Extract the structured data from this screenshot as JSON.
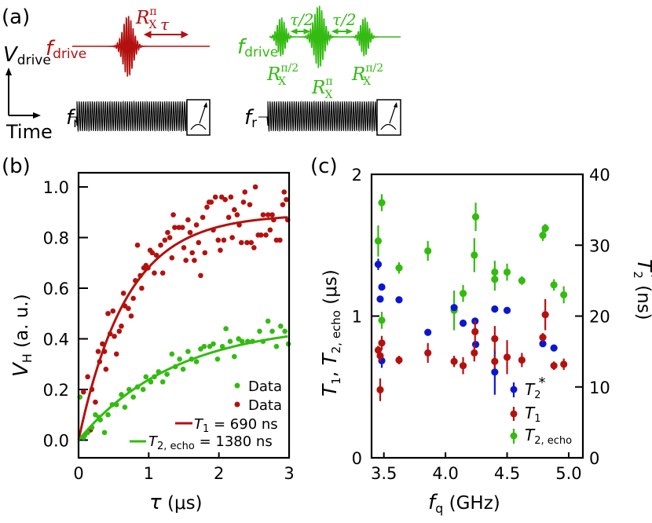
{
  "colors": {
    "t1": "#b3110f",
    "echo": "#33bb11",
    "t2star": "#0b17cf",
    "axis": "#000000"
  },
  "panel_a": {
    "label": "(a)",
    "vdrive": {
      "main": "V",
      "sub": "drive"
    },
    "time": "Time",
    "f_drive": {
      "main": "f",
      "sub": "drive"
    },
    "f_r": {
      "main": "f",
      "sub": "r"
    },
    "t1_sequence": {
      "pulse": {
        "main": "R",
        "sub": "X",
        "sup": "π"
      },
      "delay": "τ"
    },
    "echo_sequence": {
      "pulse_half": {
        "main": "R",
        "sub": "X",
        "sup": "π/2"
      },
      "pulse_pi": {
        "main": "R",
        "sub": "X",
        "sup": "π"
      },
      "half_delay": "τ/2"
    }
  },
  "chart_data": [
    {
      "panel_label": "(b)",
      "type": "scatter",
      "xlabel": {
        "main": "τ",
        "unit": " (μs)"
      },
      "ylabel": {
        "main": "V",
        "sub": "H",
        "unit": " (a. u.)"
      },
      "xlim": [
        0,
        3
      ],
      "ylim": [
        -0.07,
        1.056
      ],
      "xticks": [
        "0",
        "1",
        "2",
        "3"
      ],
      "yticks": [
        "0.0",
        "0.2",
        "0.4",
        "0.6",
        "0.8",
        "1.0"
      ],
      "legend_position": "bottom-right",
      "legend": {
        "echo_data": "Data",
        "t1_data": "Data",
        "t1_fit": {
          "main": "T",
          "sub": "1",
          "rest": " = 690 ns"
        },
        "echo_fit": {
          "main": "T",
          "sub": "2, echo",
          "rest": " = 1380 ns"
        }
      },
      "fits": [
        {
          "series": "t1",
          "model": "A(1-exp(-t/T))",
          "A": 0.892,
          "T_us": 0.69
        },
        {
          "series": "echo",
          "model": "A(1-exp(-t/T))",
          "A": 0.463,
          "T_us": 1.38
        }
      ],
      "series": [
        {
          "key": "t1",
          "points": [
            [
              0.07,
              0.01
            ],
            [
              0.17,
              0.04
            ],
            [
              0.07,
              0.19
            ],
            [
              0.13,
              0.25
            ],
            [
              0.19,
              0.2
            ],
            [
              0.24,
              0.15
            ],
            [
              0.28,
              0.35
            ],
            [
              0.3,
              0.31
            ],
            [
              0.34,
              0.38
            ],
            [
              0.37,
              0.35
            ],
            [
              0.39,
              0.28
            ],
            [
              0.42,
              0.5
            ],
            [
              0.45,
              0.42
            ],
            [
              0.49,
              0.51
            ],
            [
              0.51,
              0.41
            ],
            [
              0.54,
              0.34
            ],
            [
              0.58,
              0.43
            ],
            [
              0.61,
              0.45
            ],
            [
              0.64,
              0.58
            ],
            [
              0.66,
              0.53
            ],
            [
              0.71,
              0.52
            ],
            [
              0.75,
              0.49
            ],
            [
              0.78,
              0.56
            ],
            [
              0.81,
              0.63
            ],
            [
              0.84,
              0.77
            ],
            [
              0.88,
              0.65
            ],
            [
              0.9,
              0.6
            ],
            [
              0.93,
              0.68
            ],
            [
              0.96,
              0.69
            ],
            [
              0.99,
              0.68
            ],
            [
              1.02,
              0.75
            ],
            [
              1.05,
              0.74
            ],
            [
              1.08,
              0.66
            ],
            [
              1.11,
              0.73
            ],
            [
              1.17,
              0.77
            ],
            [
              1.2,
              0.66
            ],
            [
              1.23,
              0.79
            ],
            [
              1.27,
              0.82
            ],
            [
              1.3,
              0.8
            ],
            [
              1.33,
              0.72
            ],
            [
              1.35,
              0.89
            ],
            [
              1.37,
              0.84
            ],
            [
              1.43,
              0.84
            ],
            [
              1.48,
              0.84
            ],
            [
              1.5,
              0.76
            ],
            [
              1.53,
              0.71
            ],
            [
              1.56,
              0.87
            ],
            [
              1.59,
              0.82
            ],
            [
              1.62,
              0.74
            ],
            [
              1.65,
              0.71
            ],
            [
              1.68,
              0.85
            ],
            [
              1.71,
              0.78
            ],
            [
              1.74,
              0.65
            ],
            [
              1.77,
              0.88
            ],
            [
              1.8,
              0.74
            ],
            [
              1.83,
              0.92
            ],
            [
              1.86,
              0.94
            ],
            [
              1.89,
              0.94
            ],
            [
              1.92,
              0.83
            ],
            [
              1.95,
              0.96
            ],
            [
              1.99,
              0.79
            ],
            [
              2.02,
              0.75
            ],
            [
              2.04,
              0.96
            ],
            [
              2.07,
              0.79
            ],
            [
              2.09,
              0.95
            ],
            [
              2.14,
              0.88
            ],
            [
              2.17,
              0.96
            ],
            [
              2.19,
              0.8
            ],
            [
              2.22,
              0.91
            ],
            [
              2.26,
              0.89
            ],
            [
              2.29,
              0.85
            ],
            [
              2.32,
              0.78
            ],
            [
              2.35,
              0.94
            ],
            [
              2.37,
              0.98
            ],
            [
              2.4,
              0.78
            ],
            [
              2.44,
              0.93
            ],
            [
              2.46,
              0.78
            ],
            [
              2.5,
              0.76
            ],
            [
              2.52,
              1.0
            ],
            [
              2.56,
              0.81
            ],
            [
              2.6,
              0.81
            ],
            [
              2.63,
              0.89
            ],
            [
              2.67,
              0.81
            ],
            [
              2.7,
              0.89
            ],
            [
              2.73,
              0.83
            ],
            [
              2.76,
              0.89
            ],
            [
              2.78,
              0.87
            ],
            [
              2.82,
              0.79
            ],
            [
              2.87,
              0.79
            ],
            [
              2.91,
              0.93
            ],
            [
              2.93,
              0.98
            ],
            [
              2.96,
              0.95
            ],
            [
              2.98,
              0.87
            ]
          ]
        },
        {
          "key": "echo",
          "points": [
            [
              0.02,
              0.17
            ],
            [
              0.07,
              0.01
            ],
            [
              0.09,
              0.02
            ],
            [
              0.13,
              0.03
            ],
            [
              0.19,
              0.05
            ],
            [
              0.24,
              0.1
            ],
            [
              0.29,
              0.09
            ],
            [
              0.31,
              0.08
            ],
            [
              0.37,
              0.03
            ],
            [
              0.42,
              0.1
            ],
            [
              0.48,
              0.14
            ],
            [
              0.54,
              0.14
            ],
            [
              0.61,
              0.18
            ],
            [
              0.66,
              0.13
            ],
            [
              0.72,
              0.2
            ],
            [
              0.78,
              0.17
            ],
            [
              0.84,
              0.21
            ],
            [
              0.92,
              0.2
            ],
            [
              0.96,
              0.25
            ],
            [
              1.03,
              0.23
            ],
            [
              1.08,
              0.25
            ],
            [
              1.14,
              0.27
            ],
            [
              1.2,
              0.23
            ],
            [
              1.26,
              0.26
            ],
            [
              1.33,
              0.34
            ],
            [
              1.38,
              0.29
            ],
            [
              1.44,
              0.32
            ],
            [
              1.49,
              0.28
            ],
            [
              1.56,
              0.35
            ],
            [
              1.61,
              0.32
            ],
            [
              1.68,
              0.31
            ],
            [
              1.74,
              0.36
            ],
            [
              1.79,
              0.37
            ],
            [
              1.87,
              0.37
            ],
            [
              1.92,
              0.38
            ],
            [
              1.98,
              0.32
            ],
            [
              2.05,
              0.37
            ],
            [
              2.1,
              0.44
            ],
            [
              2.16,
              0.39
            ],
            [
              2.22,
              0.33
            ],
            [
              2.28,
              0.4
            ],
            [
              2.33,
              0.39
            ],
            [
              2.41,
              0.39
            ],
            [
              2.48,
              0.39
            ],
            [
              2.58,
              0.43
            ],
            [
              2.63,
              0.39
            ],
            [
              2.7,
              0.47
            ],
            [
              2.76,
              0.43
            ],
            [
              2.82,
              0.37
            ],
            [
              2.88,
              0.45
            ],
            [
              2.94,
              0.43
            ],
            [
              2.99,
              0.38
            ]
          ]
        }
      ]
    },
    {
      "panel_label": "(c)",
      "type": "scatter",
      "xlabel": {
        "main": "f",
        "sub": "q",
        "unit": " (GHz)"
      },
      "ylabel_left": {
        "t1": "T",
        "t1_sub": "1",
        "sep": ", ",
        "t2": "T",
        "t2_sub": "2, echo",
        "unit": " (μs)"
      },
      "ylabel_right": {
        "main": "T",
        "sub": "2",
        "sup": "*",
        "unit": " (ns)"
      },
      "xlim": [
        3.4,
        5.115
      ],
      "ylim_left": [
        0,
        2
      ],
      "ylim_right": [
        0,
        40
      ],
      "xticks": [
        "3.5",
        "4.0",
        "4.5",
        "5.0"
      ],
      "yticks_left": [
        "0",
        "1",
        "2"
      ],
      "yticks_right": [
        "0",
        "10",
        "20",
        "30",
        "40"
      ],
      "legend_position": "bottom-right",
      "legend": {
        "t2star": {
          "main": "T",
          "sub": "2",
          "sup": "*"
        },
        "t1": {
          "main": "T",
          "sub": "1"
        },
        "echo": {
          "main": "T",
          "sub": "2, echo"
        }
      },
      "series": [
        {
          "key": "echo",
          "axis": "left",
          "unit": "μs",
          "points": [
            [
              3.483,
              1.8,
              0.06
            ],
            [
              3.454,
              1.53,
              0.11
            ],
            [
              3.483,
              0.97,
              0.06
            ],
            [
              3.623,
              1.34,
              0.04
            ],
            [
              3.857,
              1.46,
              0.07
            ],
            [
              4.07,
              1.04,
              0.14
            ],
            [
              4.143,
              1.16,
              0.06
            ],
            [
              4.245,
              1.7,
              0.1
            ],
            [
              4.234,
              1.43,
              0.12
            ],
            [
              4.4,
              1.31,
              0.08
            ],
            [
              4.4,
              1.26,
              0.08
            ],
            [
              4.5,
              1.31,
              0.06
            ],
            [
              4.62,
              1.25,
              0.03
            ],
            [
              4.79,
              1.57,
              0.04
            ],
            [
              4.81,
              1.62,
              0.03
            ],
            [
              4.88,
              1.22,
              0.04
            ],
            [
              4.96,
              1.15,
              0.06
            ]
          ]
        },
        {
          "key": "t2star",
          "axis": "right",
          "unit": "ns",
          "points": [
            [
              3.454,
              27.3,
              0.8
            ],
            [
              3.483,
              24.1,
              0.3
            ],
            [
              3.47,
              22.4,
              0.3
            ],
            [
              3.483,
              13.7,
              1.0
            ],
            [
              3.623,
              22.3,
              0.3
            ],
            [
              3.857,
              17.7,
              0.3
            ],
            [
              4.07,
              21.2,
              0.4
            ],
            [
              4.143,
              19.0,
              0.3
            ],
            [
              4.24,
              19.3,
              0.3
            ],
            [
              4.245,
              16.0,
              0.4
            ],
            [
              4.4,
              21.0,
              0.3
            ],
            [
              4.5,
              20.8,
              0.3
            ],
            [
              4.4,
              12.1,
              3.2
            ],
            [
              4.79,
              16.1,
              0.3
            ],
            [
              4.88,
              15.5,
              0.3
            ]
          ]
        },
        {
          "key": "t1",
          "axis": "left",
          "unit": "μs",
          "points": [
            [
              3.454,
              0.76,
              0.03
            ],
            [
              3.483,
              0.81,
              0.05
            ],
            [
              3.47,
              0.72,
              0.04
            ],
            [
              3.47,
              0.48,
              0.08
            ],
            [
              3.623,
              0.69,
              0.03
            ],
            [
              3.857,
              0.74,
              0.07
            ],
            [
              4.07,
              0.68,
              0.04
            ],
            [
              4.143,
              0.65,
              0.06
            ],
            [
              4.24,
              0.89,
              0.08
            ],
            [
              4.234,
              0.74,
              0.06
            ],
            [
              4.4,
              0.84,
              0.09
            ],
            [
              4.4,
              0.68,
              0.05
            ],
            [
              4.5,
              0.71,
              0.12
            ],
            [
              4.62,
              0.69,
              0.05
            ],
            [
              4.79,
              0.85,
              0.03
            ],
            [
              4.81,
              1.01,
              0.11
            ],
            [
              4.88,
              0.65,
              0.03
            ],
            [
              4.96,
              0.66,
              0.04
            ]
          ]
        }
      ]
    }
  ]
}
